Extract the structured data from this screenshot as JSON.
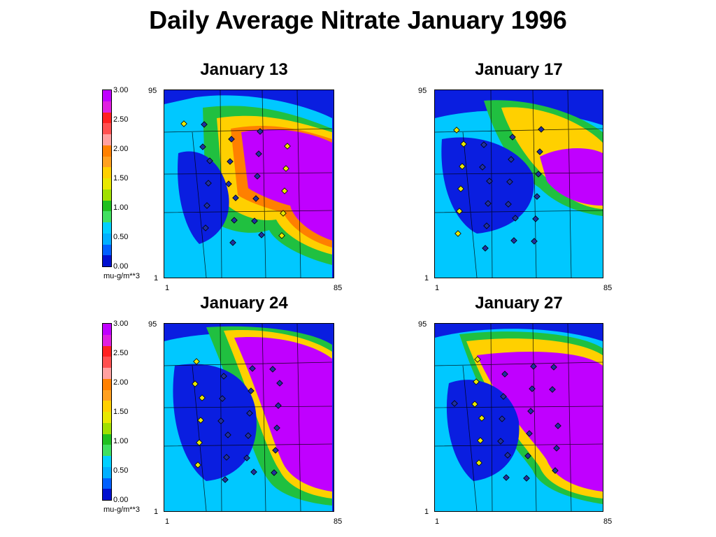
{
  "title": "Daily Average Nitrate January 1996",
  "color_scale": {
    "ticks": [
      "3.00",
      "2.50",
      "2.00",
      "1.50",
      "1.00",
      "0.50",
      "0.00"
    ],
    "unit": "mu-g/m**3",
    "colors": [
      "#c000ff",
      "#e020e0",
      "#ff2020",
      "#ff5050",
      "#ffa0a0",
      "#ff8000",
      "#ffa020",
      "#ffd000",
      "#e8e800",
      "#a0e000",
      "#20c020",
      "#40e060",
      "#00d0ff",
      "#00b0ff",
      "#0060ff",
      "#0010d0"
    ]
  },
  "axes": {
    "y_top": "95",
    "y_bottom": "1",
    "x_left": "1",
    "x_right": "85"
  },
  "panels": [
    {
      "label": "January 13"
    },
    {
      "label": "January 17"
    },
    {
      "label": "January 24"
    },
    {
      "label": "January 27"
    }
  ]
}
